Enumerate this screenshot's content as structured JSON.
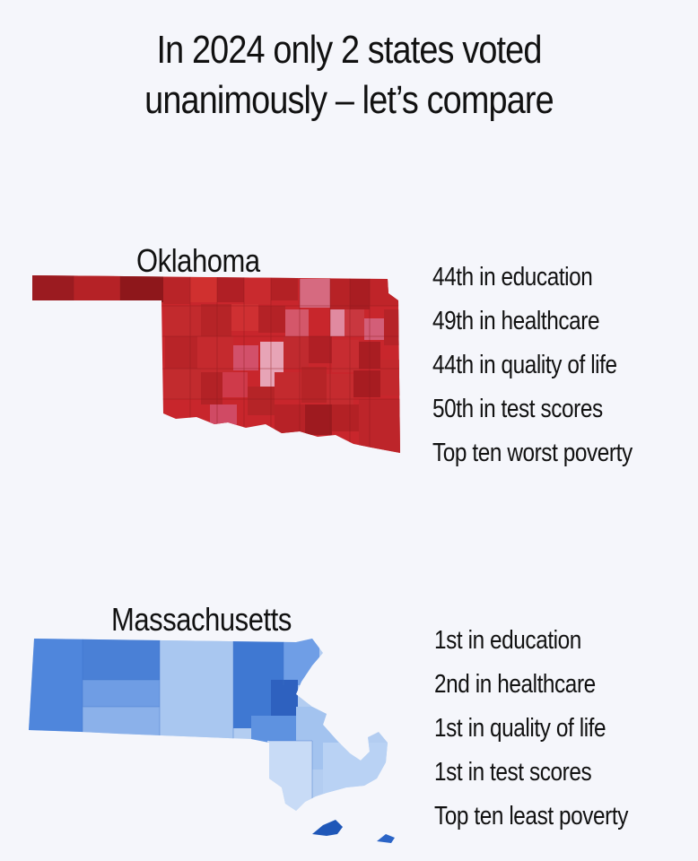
{
  "title": {
    "line1": "In 2024 only 2 states voted",
    "line2": "unanimously – let’s compare"
  },
  "oklahoma": {
    "name": "Oklahoma",
    "facts": [
      "44th in education",
      "49th in healthcare",
      "44th in quality of life",
      "50th in test scores",
      "Top ten worst poverty"
    ],
    "map_color": "#c8262c"
  },
  "massachusetts": {
    "name": "Massachusetts",
    "facts": [
      "1st in education",
      "2nd in healthcare",
      "1st in quality of life",
      "1st in test scores",
      "Top ten least poverty"
    ],
    "map_color": "#5b8fe0"
  }
}
